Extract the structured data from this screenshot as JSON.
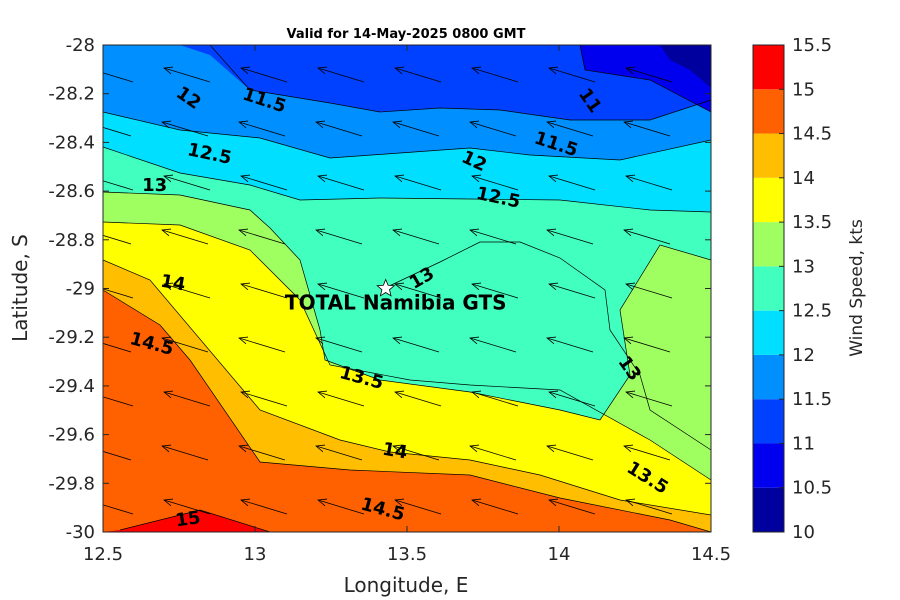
{
  "chart_data": {
    "type": "heatmap",
    "title": "Valid for 14-May-2025 0800 GMT",
    "xlabel": "Longitude, E",
    "ylabel": "Latitude, S",
    "xlim": [
      12.5,
      14.5
    ],
    "ylim": [
      -30,
      -28
    ],
    "x_ticks": [
      "12.5",
      "13",
      "13.5",
      "14",
      "14.5"
    ],
    "y_ticks": [
      "-28",
      "-28.2",
      "-28.4",
      "-28.6",
      "-28.8",
      "-29",
      "-29.2",
      "-29.4",
      "-29.6",
      "-29.8",
      "-30"
    ],
    "colorbar": {
      "label": "Wind Speed, kts",
      "min": 10,
      "max": 15.5,
      "ticks": [
        "10",
        "10.5",
        "11",
        "11.5",
        "12",
        "12.5",
        "13",
        "13.5",
        "14",
        "14.5",
        "15",
        "15.5"
      ],
      "colors": [
        "#00009f",
        "#0000ee",
        "#0040ff",
        "#008fff",
        "#00dfff",
        "#40ffbf",
        "#9fff60",
        "#ffff00",
        "#ffbf00",
        "#ff6000",
        "#ff0000"
      ]
    },
    "wind_direction": "from east-southeast (vectors point toward west-northwest)",
    "station": {
      "name": "TOTAL Namibia GTS",
      "lon": 13.43,
      "lat": -29.0
    },
    "contour_labels": [
      {
        "text": "12",
        "lon": 12.78,
        "lat": -28.22
      },
      {
        "text": "11.5",
        "lon": 13.03,
        "lat": -28.23
      },
      {
        "text": "11",
        "lon": 14.1,
        "lat": -28.23
      },
      {
        "text": "11.5",
        "lon": 13.99,
        "lat": -28.41
      },
      {
        "text": "12.5",
        "lon": 12.85,
        "lat": -28.45
      },
      {
        "text": "12",
        "lon": 13.72,
        "lat": -28.48
      },
      {
        "text": "13",
        "lon": 12.67,
        "lat": -28.58
      },
      {
        "text": "12.5",
        "lon": 13.8,
        "lat": -28.63
      },
      {
        "text": "14",
        "lon": 12.73,
        "lat": -28.98
      },
      {
        "text": "13",
        "lon": 13.55,
        "lat": -28.96
      },
      {
        "text": "14.5",
        "lon": 12.66,
        "lat": -29.23
      },
      {
        "text": "13",
        "lon": 14.23,
        "lat": -29.33
      },
      {
        "text": "13.5",
        "lon": 13.35,
        "lat": -29.37
      },
      {
        "text": "14",
        "lon": 13.46,
        "lat": -29.67
      },
      {
        "text": "13.5",
        "lon": 14.29,
        "lat": -29.78
      },
      {
        "text": "14.5",
        "lon": 13.42,
        "lat": -29.91
      },
      {
        "text": "15",
        "lon": 12.78,
        "lat": -29.95
      }
    ],
    "grid": false,
    "legend": "colorbar right"
  }
}
